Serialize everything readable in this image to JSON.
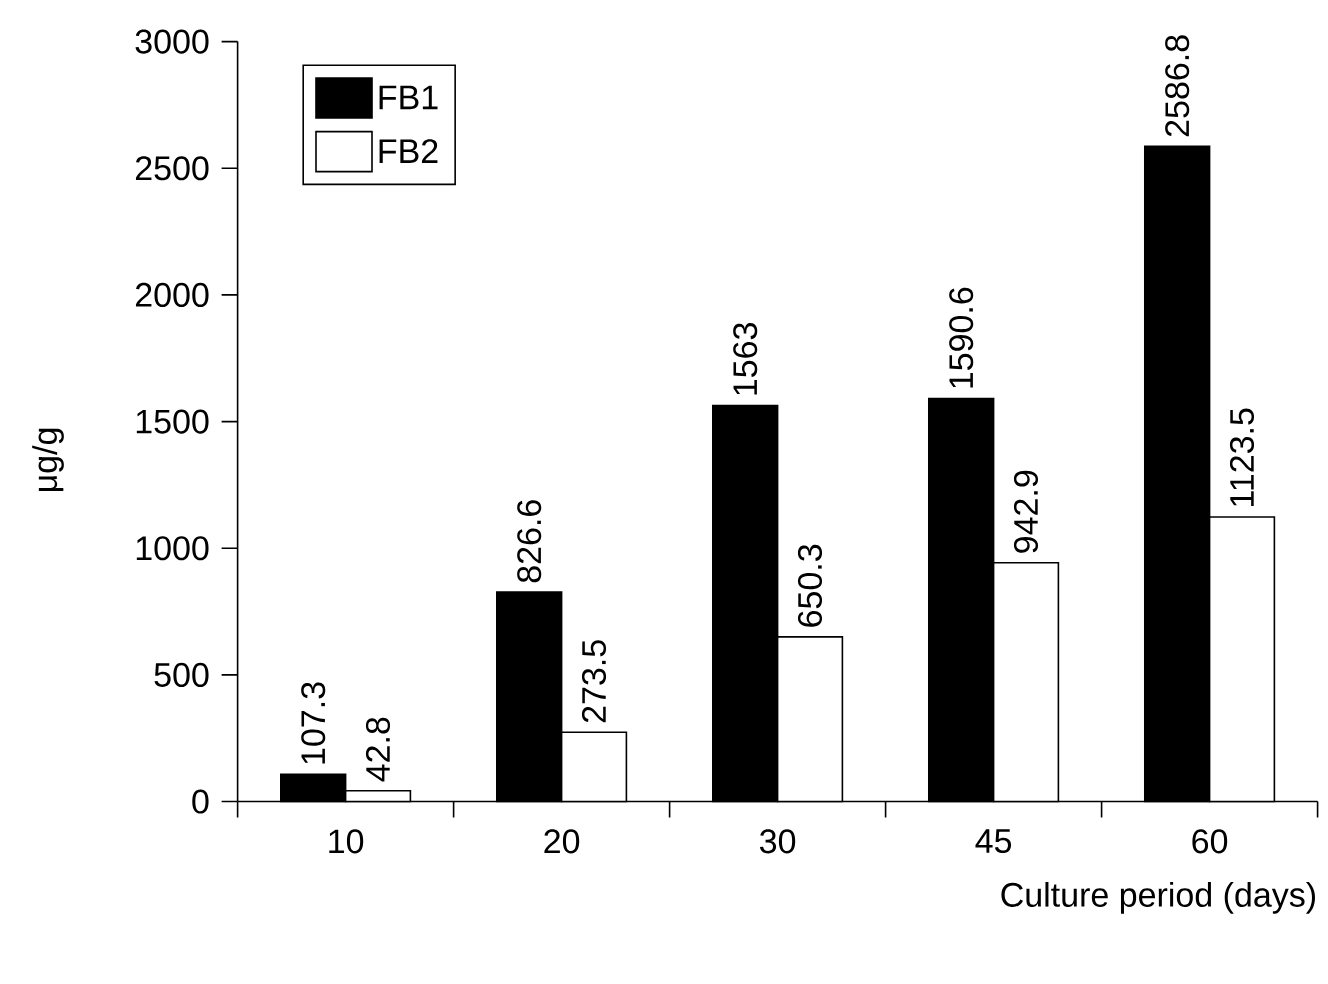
{
  "chart_data": {
    "type": "bar",
    "xlabel": "Culture period (days)",
    "ylabel": "μg/g",
    "categories": [
      "10",
      "20",
      "30",
      "45",
      "60"
    ],
    "series": [
      {
        "name": "FB1",
        "color": "#000000",
        "values": [
          107.3,
          826.6,
          1563,
          1590.6,
          2586.8
        ]
      },
      {
        "name": "FB2",
        "color": "#ffffff",
        "values": [
          42.8,
          273.5,
          650.3,
          942.9,
          1123.5
        ]
      }
    ],
    "ylim": [
      0,
      3000
    ],
    "yticks": [
      0,
      500,
      1000,
      1500,
      2000,
      2500,
      3000
    ],
    "data_labels": true,
    "legend": "top left",
    "grid": false
  }
}
